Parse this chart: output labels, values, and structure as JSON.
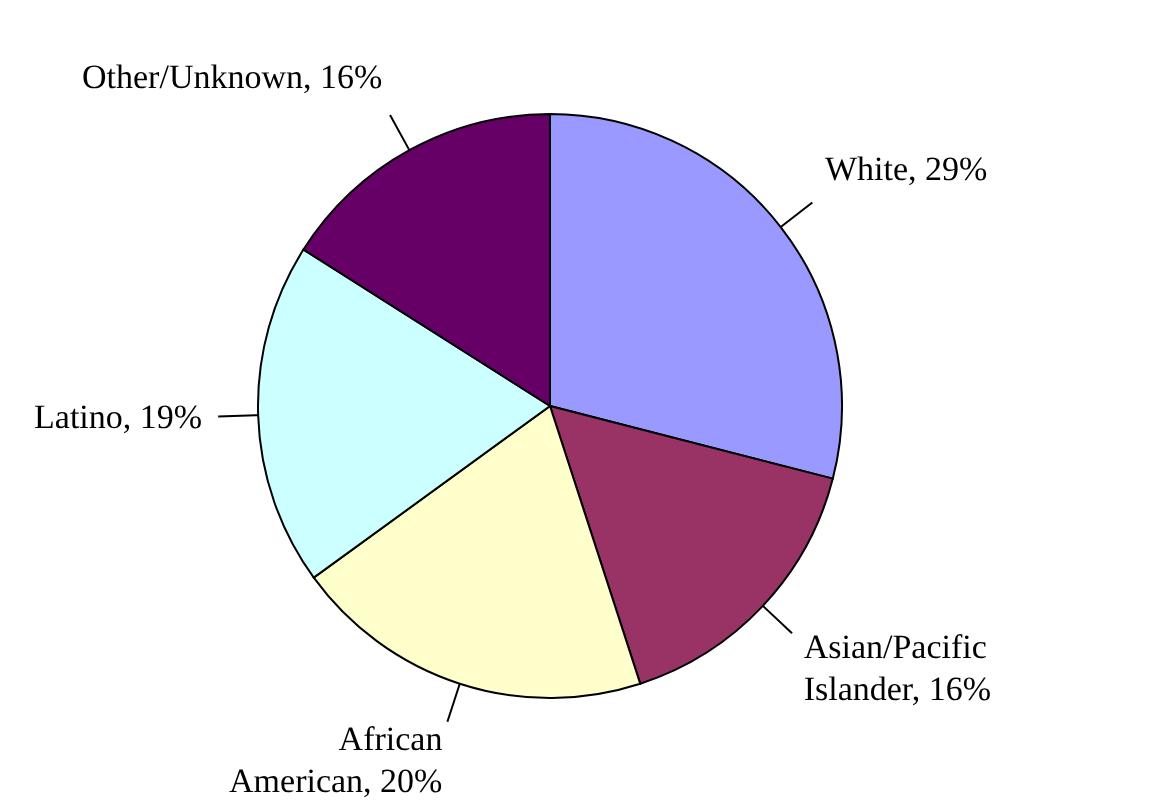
{
  "chart_data": {
    "type": "pie",
    "categories": [
      "White",
      "Asian/Pacific Islander",
      "African American",
      "Latino",
      "Other/Unknown"
    ],
    "values": [
      29,
      16,
      20,
      19,
      16
    ],
    "colors": [
      "#9999ff",
      "#993366",
      "#ffffcc",
      "#ccffff",
      "#660066"
    ],
    "value_labels": [
      "29%",
      "16%",
      "20%",
      "19%",
      "16%"
    ],
    "legend": false
  }
}
